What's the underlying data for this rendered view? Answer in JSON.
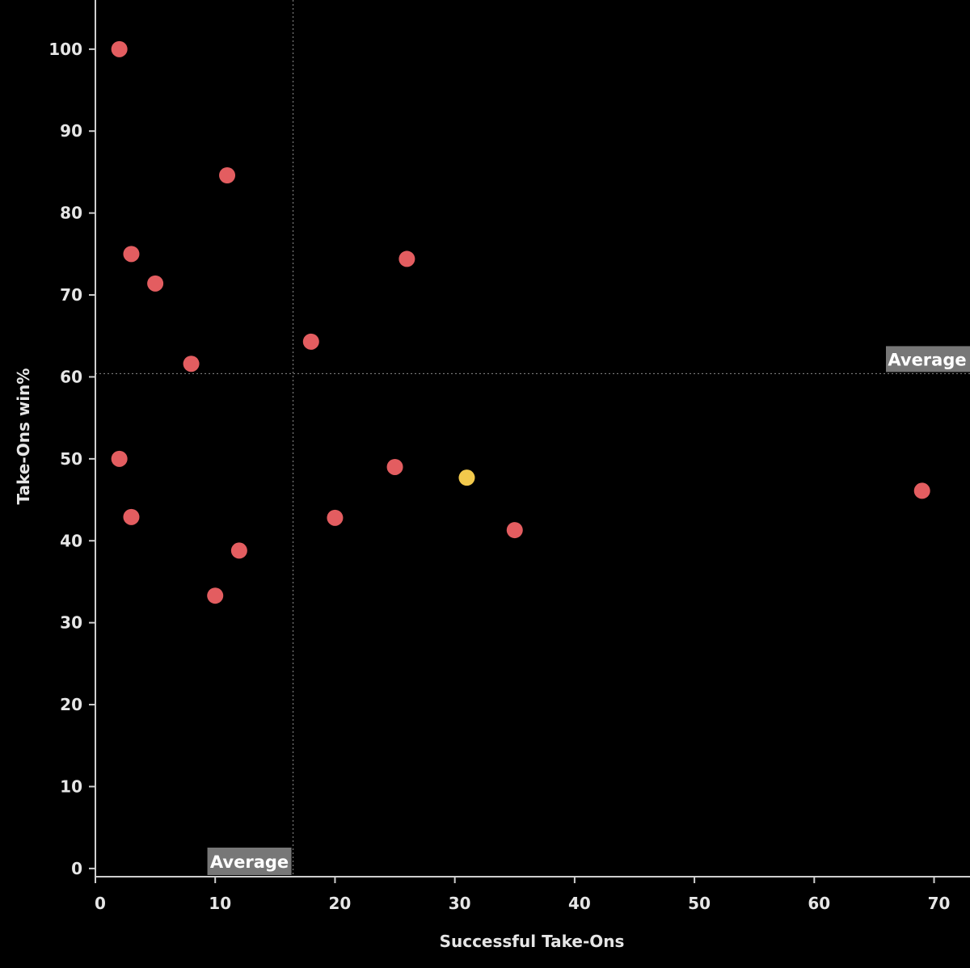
{
  "chart_data": {
    "type": "scatter",
    "title": "",
    "xlabel": "Successful Take-Ons",
    "ylabel": "Take-Ons win%",
    "xlim": [
      0,
      73
    ],
    "ylim": [
      -1,
      106
    ],
    "xticks": [
      0,
      10,
      20,
      30,
      40,
      50,
      60,
      70
    ],
    "yticks": [
      0,
      10,
      20,
      30,
      40,
      50,
      60,
      70,
      80,
      90,
      100
    ],
    "grid": false,
    "reference_lines": [
      {
        "axis": "x",
        "value": 16.5,
        "label": "Average"
      },
      {
        "axis": "y",
        "value": 60.4,
        "label": "Average"
      }
    ],
    "colors": {
      "default": "#e35d60",
      "highlight": "#f2c94c",
      "axis": "#cfcfcf",
      "background": "#000000"
    },
    "points": [
      {
        "x": 2,
        "y": 100,
        "highlight": false
      },
      {
        "x": 11,
        "y": 84.6,
        "highlight": false
      },
      {
        "x": 3,
        "y": 75,
        "highlight": false
      },
      {
        "x": 26,
        "y": 74.4,
        "highlight": false
      },
      {
        "x": 5,
        "y": 71.4,
        "highlight": false
      },
      {
        "x": 18,
        "y": 64.3,
        "highlight": false
      },
      {
        "x": 8,
        "y": 61.6,
        "highlight": false
      },
      {
        "x": 2,
        "y": 50,
        "highlight": false
      },
      {
        "x": 25,
        "y": 49,
        "highlight": false
      },
      {
        "x": 31,
        "y": 47.7,
        "highlight": true
      },
      {
        "x": 69,
        "y": 46.1,
        "highlight": false
      },
      {
        "x": 3,
        "y": 42.9,
        "highlight": false
      },
      {
        "x": 20,
        "y": 42.8,
        "highlight": false
      },
      {
        "x": 35,
        "y": 41.3,
        "highlight": false
      },
      {
        "x": 12,
        "y": 38.8,
        "highlight": false
      },
      {
        "x": 10,
        "y": 33.3,
        "highlight": false
      }
    ]
  }
}
